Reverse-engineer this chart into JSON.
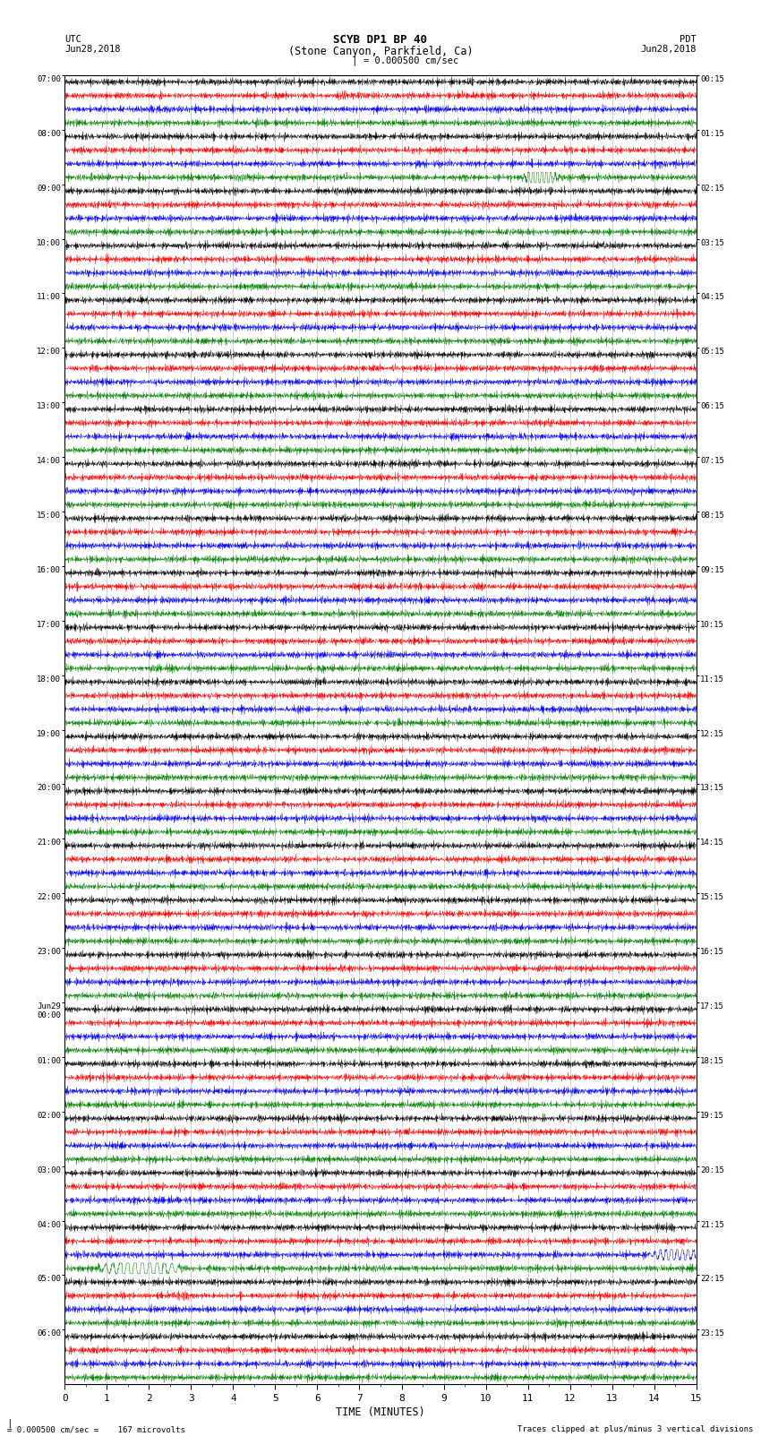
{
  "title_line1": "SCYB DP1 BP 40",
  "title_line2": "(Stone Canyon, Parkfield, Ca)",
  "scale_text": "= 0.000500 cm/sec",
  "footer_left": "= 0.000500 cm/sec =    167 microvolts",
  "footer_right": "Traces clipped at plus/minus 3 vertical divisions",
  "xlabel": "TIME (MINUTES)",
  "colors": [
    "black",
    "red",
    "blue",
    "green"
  ],
  "bg_color": "white",
  "minutes": 15,
  "utc_times": [
    "07:00",
    "08:00",
    "09:00",
    "10:00",
    "11:00",
    "12:00",
    "13:00",
    "14:00",
    "15:00",
    "16:00",
    "17:00",
    "18:00",
    "19:00",
    "20:00",
    "21:00",
    "22:00",
    "23:00",
    "Jun29\n00:00",
    "01:00",
    "02:00",
    "03:00",
    "04:00",
    "05:00",
    "06:00"
  ],
  "pdt_times": [
    "00:15",
    "01:15",
    "02:15",
    "03:15",
    "04:15",
    "05:15",
    "06:15",
    "07:15",
    "08:15",
    "09:15",
    "10:15",
    "11:15",
    "12:15",
    "13:15",
    "14:15",
    "15:15",
    "16:15",
    "17:15",
    "18:15",
    "19:15",
    "20:15",
    "21:15",
    "22:15",
    "23:15"
  ]
}
